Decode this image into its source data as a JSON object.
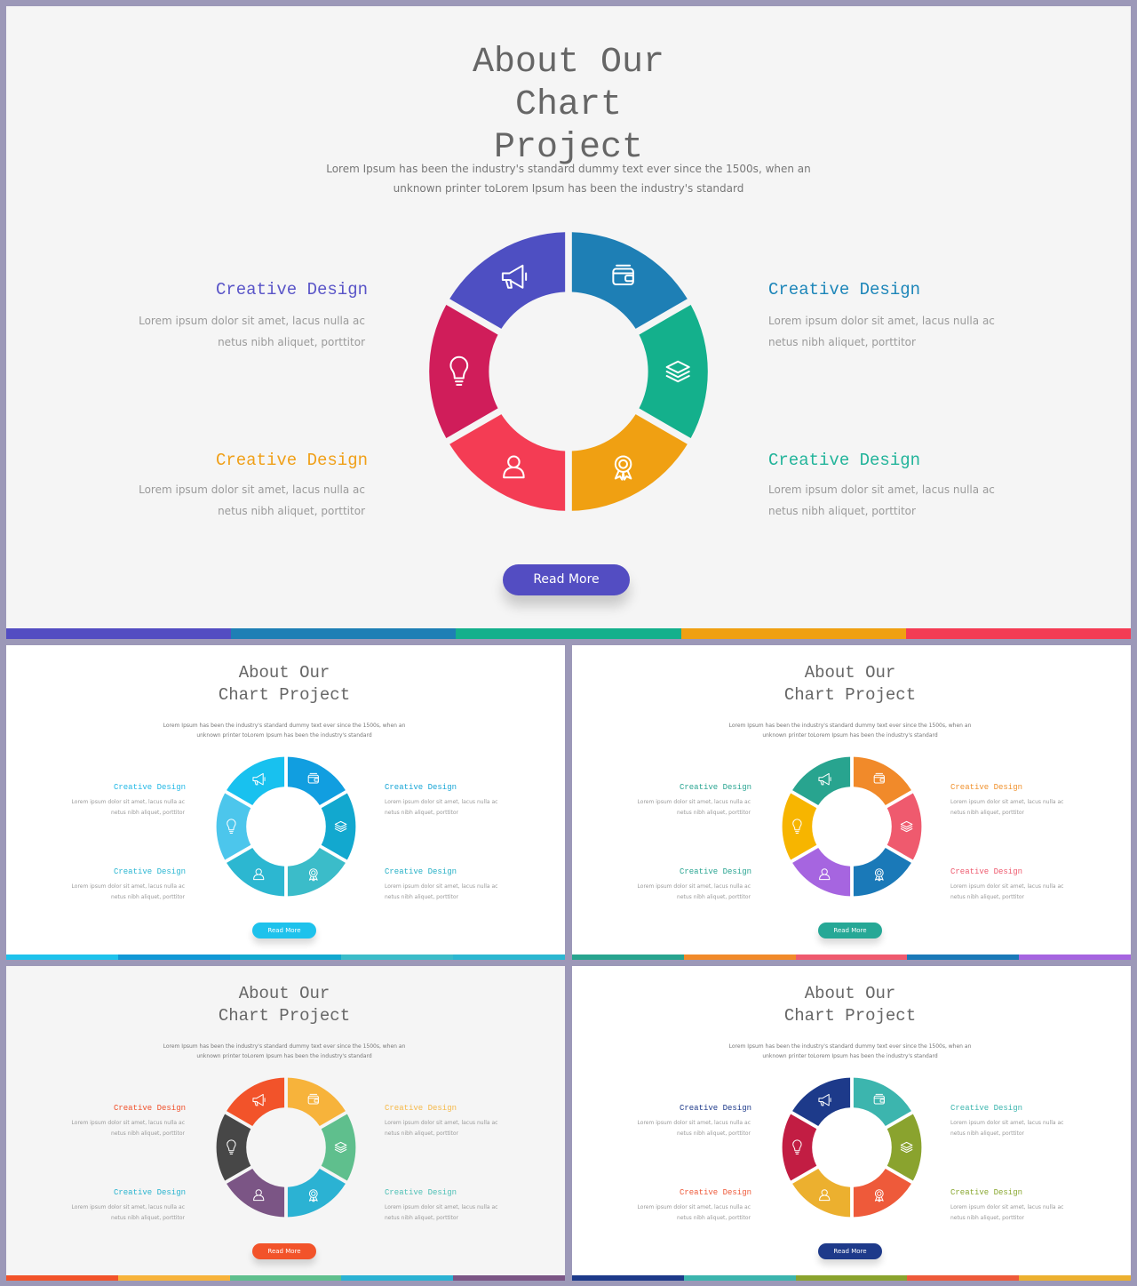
{
  "slides": [
    {
      "title": "About Our Chart Project",
      "subtitle": "Lorem  Ipsum has been the industry's standard dummy text ever since the 1500s, when an unknown printer toLorem  Ipsum has been the industry's standard",
      "items": [
        {
          "label": "Creative Design",
          "text": "Lorem  ipsum dolor sit amet, lacus nulla ac netus nibh aliquet, porttitor",
          "color": "#5a55c8"
        },
        {
          "label": "Creative Design",
          "text": "Lorem  ipsum dolor sit amet, lacus nulla ac netus nibh aliquet, porttitor",
          "color": "#1d86b9"
        },
        {
          "label": "Creative Design",
          "text": "Lorem  ipsum dolor sit amet, lacus nulla ac netus nibh aliquet, porttitor",
          "color": "#f0a019"
        },
        {
          "label": "Creative Design",
          "text": "Lorem  ipsum dolor sit amet, lacus nulla ac netus nibh aliquet, porttitor",
          "color": "#22b49a"
        }
      ],
      "button": "Read More",
      "button_color": "#534dc2",
      "segments": [
        {
          "icon": "wallet-icon",
          "color": "#1e7fb5"
        },
        {
          "icon": "layers-icon",
          "color": "#14b08c"
        },
        {
          "icon": "award-icon",
          "color": "#f0a012"
        },
        {
          "icon": "user-icon",
          "color": "#f43c54"
        },
        {
          "icon": "lightbulb-icon",
          "color": "#d01d5a"
        },
        {
          "icon": "megaphone-icon",
          "color": "#4e4fc2"
        }
      ],
      "bar_colors": [
        "#534dc2",
        "#1e7fb5",
        "#14b08c",
        "#f0a012",
        "#f43c54"
      ],
      "background": "#f5f5f5"
    },
    {
      "title": "About Our Chart Project",
      "subtitle": "Lorem  Ipsum has been the industry's standard dummy text ever since the 1500s, when an unknown printer toLorem  Ipsum has been the industry's standard",
      "items": [
        {
          "label": "Creative Design",
          "text": "Lorem  ipsum dolor sit amet, lacus nulla ac netus nibh aliquet, porttitor",
          "color": "#23b8e6"
        },
        {
          "label": "Creative Design",
          "text": "Lorem  ipsum dolor sit amet, lacus nulla ac netus nibh aliquet, porttitor",
          "color": "#1aa6d6"
        },
        {
          "label": "Creative Design",
          "text": "Lorem  ipsum dolor sit amet, lacus nulla ac netus nibh aliquet, porttitor",
          "color": "#2ab6d2"
        },
        {
          "label": "Creative Design",
          "text": "Lorem  ipsum dolor sit amet, lacus nulla ac netus nibh aliquet, porttitor",
          "color": "#26b0c6"
        }
      ],
      "button": "Read More",
      "button_color": "#1ec2ec",
      "segments": [
        {
          "icon": "wallet-icon",
          "color": "#119ee0"
        },
        {
          "icon": "layers-icon",
          "color": "#12a8cf"
        },
        {
          "icon": "award-icon",
          "color": "#3bbcc9"
        },
        {
          "icon": "user-icon",
          "color": "#2cb7d1"
        },
        {
          "icon": "lightbulb-icon",
          "color": "#4cc6ec"
        },
        {
          "icon": "megaphone-icon",
          "color": "#18c1ef"
        }
      ],
      "bar_colors": [
        "#1ec2ec",
        "#1198d6",
        "#12a8cf",
        "#3bbcc9",
        "#2cb7d1"
      ],
      "background": "#ffffff"
    },
    {
      "title": "About Our Chart Project",
      "subtitle": "Lorem  Ipsum has been the industry's standard dummy text ever since the 1500s, when an unknown printer toLorem  Ipsum has been the industry's standard",
      "items": [
        {
          "label": "Creative Design",
          "text": "Lorem  ipsum dolor sit amet, lacus nulla ac netus nibh aliquet, porttitor",
          "color": "#2aa592"
        },
        {
          "label": "Creative Design",
          "text": "Lorem  ipsum dolor sit amet, lacus nulla ac netus nibh aliquet, porttitor",
          "color": "#f0922f"
        },
        {
          "label": "Creative Design",
          "text": "Lorem  ipsum dolor sit amet, lacus nulla ac netus nibh aliquet, porttitor",
          "color": "#2aa592"
        },
        {
          "label": "Creative Design",
          "text": "Lorem  ipsum dolor sit amet, lacus nulla ac netus nibh aliquet, porttitor",
          "color": "#ee5a6e"
        }
      ],
      "button": "Read More",
      "button_color": "#26a896",
      "segments": [
        {
          "icon": "wallet-icon",
          "color": "#f18a2a"
        },
        {
          "icon": "layers-icon",
          "color": "#ef5a6e"
        },
        {
          "icon": "award-icon",
          "color": "#1a79b8"
        },
        {
          "icon": "user-icon",
          "color": "#a665e0"
        },
        {
          "icon": "lightbulb-icon",
          "color": "#f7b500"
        },
        {
          "icon": "megaphone-icon",
          "color": "#28a48f"
        }
      ],
      "bar_colors": [
        "#28a48f",
        "#f18a2a",
        "#ef5a6e",
        "#1a79b8",
        "#a665e0"
      ],
      "background": "#ffffff"
    },
    {
      "title": "About Our Chart Project",
      "subtitle": "Lorem  Ipsum has been the industry's standard dummy text ever since the 1500s, when an unknown printer toLorem  Ipsum has been the industry's standard",
      "items": [
        {
          "label": "Creative Design",
          "text": "Lorem  ipsum dolor sit amet, lacus nulla ac netus nibh aliquet, porttitor",
          "color": "#f0502a"
        },
        {
          "label": "Creative Design",
          "text": "Lorem  ipsum dolor sit amet, lacus nulla ac netus nibh aliquet, porttitor",
          "color": "#f5b94a"
        },
        {
          "label": "Creative Design",
          "text": "Lorem  ipsum dolor sit amet, lacus nulla ac netus nibh aliquet, porttitor",
          "color": "#2ab4cf"
        },
        {
          "label": "Creative Design",
          "text": "Lorem  ipsum dolor sit amet, lacus nulla ac netus nibh aliquet, porttitor",
          "color": "#4fc0b6"
        }
      ],
      "button": "Read More",
      "button_color": "#f2532a",
      "segments": [
        {
          "icon": "wallet-icon",
          "color": "#f7b33b"
        },
        {
          "icon": "layers-icon",
          "color": "#5fbf8d"
        },
        {
          "icon": "award-icon",
          "color": "#2bb2d3"
        },
        {
          "icon": "user-icon",
          "color": "#7b5585"
        },
        {
          "icon": "lightbulb-icon",
          "color": "#474747"
        },
        {
          "icon": "megaphone-icon",
          "color": "#f2532a"
        }
      ],
      "bar_colors": [
        "#f2532a",
        "#f7b33b",
        "#5fbf8d",
        "#2bb2d3",
        "#7b5585"
      ],
      "background": "#f5f5f5"
    },
    {
      "title": "About Our Chart Project",
      "subtitle": "Lorem  Ipsum has been the industry's standard dummy text ever since the 1500s, when an unknown printer toLorem  Ipsum has been the industry's standard",
      "items": [
        {
          "label": "Creative Design",
          "text": "Lorem  ipsum dolor sit amet, lacus nulla ac netus nibh aliquet, porttitor",
          "color": "#1e3a8a"
        },
        {
          "label": "Creative Design",
          "text": "Lorem  ipsum dolor sit amet, lacus nulla ac netus nibh aliquet, porttitor",
          "color": "#3cb5ae"
        },
        {
          "label": "Creative Design",
          "text": "Lorem  ipsum dolor sit amet, lacus nulla ac netus nibh aliquet, porttitor",
          "color": "#ee5a3a"
        },
        {
          "label": "Creative Design",
          "text": "Lorem  ipsum dolor sit amet, lacus nulla ac netus nibh aliquet, porttitor",
          "color": "#8aa832"
        }
      ],
      "button": "Read More",
      "button_color": "#1e3a8a",
      "segments": [
        {
          "icon": "wallet-icon",
          "color": "#3cb5ae"
        },
        {
          "icon": "layers-icon",
          "color": "#8aa32e"
        },
        {
          "icon": "award-icon",
          "color": "#ee5a3a"
        },
        {
          "icon": "user-icon",
          "color": "#ecb02f"
        },
        {
          "icon": "lightbulb-icon",
          "color": "#c21d43"
        },
        {
          "icon": "megaphone-icon",
          "color": "#1d3a8a"
        }
      ],
      "bar_colors": [
        "#1d3a8a",
        "#3cb5ae",
        "#8aa32e",
        "#ee5a3a",
        "#ecb02f"
      ],
      "background": "#ffffff"
    }
  ]
}
